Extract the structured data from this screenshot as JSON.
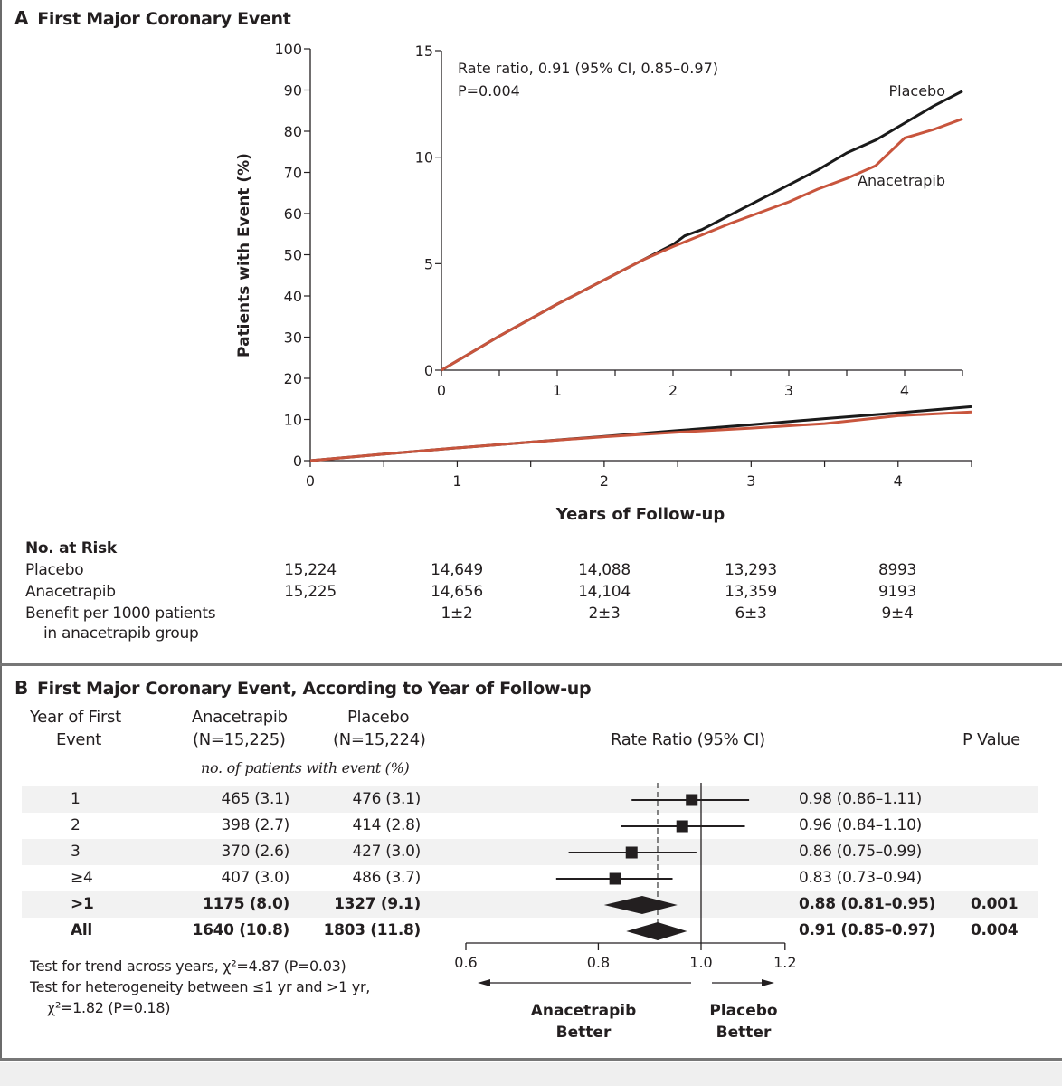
{
  "panel_a": {
    "letter": "A",
    "title": "First Major Coronary Event",
    "annotation_line1": "Rate ratio, 0.91 (95% CI, 0.85–0.97)",
    "annotation_line2": "P=0.004",
    "risk_table": {
      "header": "No. at Risk",
      "rows": [
        {
          "label": "Placebo",
          "values": [
            "15,224",
            "14,649",
            "14,088",
            "13,293",
            "8993"
          ]
        },
        {
          "label": "Anacetrapib",
          "values": [
            "15,225",
            "14,656",
            "14,104",
            "13,359",
            "9193"
          ]
        },
        {
          "label": "Benefit per 1000 patients",
          "label2": "in anacetrapib group",
          "values": [
            "",
            "1±2",
            "2±3",
            "6±3",
            "9±4"
          ]
        }
      ]
    }
  },
  "panel_b": {
    "letter": "B",
    "title": "First Major Coronary Event, According to Year of  Follow-up",
    "col_year_line1": "Year of First",
    "col_year_line2": "Event",
    "col_anac_line1": "Anacetrapib",
    "col_anac_line2": "(N=15,225)",
    "col_plac_line1": "Placebo",
    "col_plac_line2": "(N=15,224)",
    "col_rr": "Rate Ratio (95% CI)",
    "col_p": "P Value",
    "subheader": "no. of patients with event (%)",
    "footnote1": "Test for trend across years, χ²=4.87 (P=0.03)",
    "footnote2": "Test for heterogeneity between ≤1 yr and >1 yr,",
    "footnote3": "χ²=1.82 (P=0.18)",
    "left_label_line1": "Anacetrapib",
    "left_label_line2": "Better",
    "right_label_line1": "Placebo",
    "right_label_line2": "Better"
  },
  "chart_data": [
    {
      "type": "line",
      "name": "main-cumulative-incidence",
      "title": "First Major Coronary Event",
      "xlabel": "Years of Follow-up",
      "ylabel": "Patients with Event (%)",
      "xlim": [
        0,
        4.5
      ],
      "ylim": [
        0,
        100
      ],
      "xticks": [
        0,
        1,
        2,
        3,
        4
      ],
      "yticks": [
        0,
        10,
        20,
        30,
        40,
        50,
        60,
        70,
        80,
        90,
        100
      ],
      "grid": false,
      "series": [
        {
          "name": "Placebo",
          "color": "#1a1a1a",
          "x": [
            0,
            0.5,
            1,
            1.5,
            2,
            2.5,
            3,
            3.5,
            4,
            4.5
          ],
          "y": [
            0,
            1.6,
            3.1,
            4.5,
            5.9,
            7.3,
            8.7,
            10.2,
            11.6,
            13.1
          ]
        },
        {
          "name": "Anacetrapib",
          "color": "#c8553d",
          "x": [
            0,
            0.5,
            1,
            1.5,
            2,
            2.5,
            3,
            3.5,
            4,
            4.5
          ],
          "y": [
            0,
            1.6,
            3.1,
            4.5,
            5.8,
            6.9,
            7.9,
            9.0,
            10.9,
            11.8
          ]
        }
      ]
    },
    {
      "type": "line",
      "name": "inset-cumulative-incidence",
      "xlim": [
        0,
        4.5
      ],
      "ylim": [
        0,
        15
      ],
      "xticks": [
        0,
        1,
        2,
        3,
        4
      ],
      "yticks": [
        0,
        5,
        10,
        15
      ],
      "grid": false,
      "legend": [
        {
          "label": "Placebo",
          "placement": "top-right"
        },
        {
          "label": "Anacetrapib",
          "placement": "right"
        }
      ],
      "annotation": "Rate ratio, 0.91 (95% CI, 0.85–0.97) P=0.004",
      "series": [
        {
          "name": "Placebo",
          "color": "#1a1a1a",
          "x": [
            0,
            0.25,
            0.5,
            0.75,
            1,
            1.25,
            1.5,
            1.75,
            2,
            2.1,
            2.25,
            2.5,
            2.75,
            3,
            3.25,
            3.5,
            3.75,
            4,
            4.25,
            4.5
          ],
          "y": [
            0,
            0.8,
            1.6,
            2.35,
            3.1,
            3.8,
            4.5,
            5.2,
            5.9,
            6.3,
            6.6,
            7.3,
            8.0,
            8.7,
            9.4,
            10.2,
            10.8,
            11.6,
            12.4,
            13.1
          ]
        },
        {
          "name": "Anacetrapib",
          "color": "#c8553d",
          "x": [
            0,
            0.25,
            0.5,
            0.75,
            1,
            1.25,
            1.5,
            1.75,
            2,
            2.25,
            2.5,
            2.75,
            3,
            3.25,
            3.5,
            3.75,
            4,
            4.25,
            4.5
          ],
          "y": [
            0,
            0.8,
            1.6,
            2.35,
            3.1,
            3.8,
            4.5,
            5.2,
            5.8,
            6.35,
            6.9,
            7.4,
            7.9,
            8.5,
            9.0,
            9.6,
            10.9,
            11.3,
            11.8
          ]
        }
      ]
    },
    {
      "type": "forest",
      "name": "rate-ratio-forest-plot",
      "xlabel": "Rate Ratio (95% CI)",
      "xscale": "log",
      "xlim": [
        0.6,
        1.2
      ],
      "xticks": [
        0.6,
        0.8,
        1.0,
        1.2
      ],
      "reference_line": 1.0,
      "overall_dashed_line": 0.91,
      "rows": [
        {
          "year": "1",
          "anacetrapib": "465 (3.1)",
          "placebo": "476 (3.1)",
          "rr": 0.98,
          "lo": 0.86,
          "hi": 1.11,
          "rr_text": "0.98 (0.86–1.11)",
          "p": "",
          "marker": "square",
          "bold": false,
          "shaded": true
        },
        {
          "year": "2",
          "anacetrapib": "398 (2.7)",
          "placebo": "414 (2.8)",
          "rr": 0.96,
          "lo": 0.84,
          "hi": 1.1,
          "rr_text": "0.96 (0.84–1.10)",
          "p": "",
          "marker": "square",
          "bold": false,
          "shaded": false
        },
        {
          "year": "3",
          "anacetrapib": "370 (2.6)",
          "placebo": "427 (3.0)",
          "rr": 0.86,
          "lo": 0.75,
          "hi": 0.99,
          "rr_text": "0.86 (0.75–0.99)",
          "p": "",
          "marker": "square",
          "bold": false,
          "shaded": true
        },
        {
          "year": "≥4",
          "anacetrapib": "407 (3.0)",
          "placebo": "486 (3.7)",
          "rr": 0.83,
          "lo": 0.73,
          "hi": 0.94,
          "rr_text": "0.83 (0.73–0.94)",
          "p": "",
          "marker": "square",
          "bold": false,
          "shaded": false
        },
        {
          "year": ">1",
          "anacetrapib": "1175 (8.0)",
          "placebo": "1327 (9.1)",
          "rr": 0.88,
          "lo": 0.81,
          "hi": 0.95,
          "rr_text": "0.88 (0.81–0.95)",
          "p": "0.001",
          "marker": "diamond",
          "bold": true,
          "shaded": true
        },
        {
          "year": "All",
          "anacetrapib": "1640 (10.8)",
          "placebo": "1803 (11.8)",
          "rr": 0.91,
          "lo": 0.85,
          "hi": 0.97,
          "rr_text": "0.91 (0.85–0.97)",
          "p": "0.004",
          "marker": "diamond",
          "bold": true,
          "shaded": false
        }
      ]
    }
  ]
}
